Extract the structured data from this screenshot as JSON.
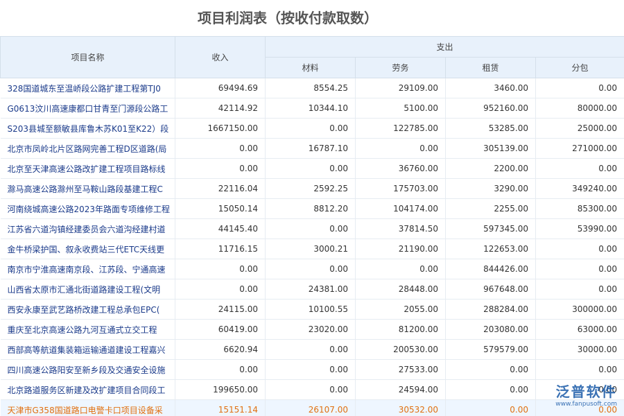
{
  "header": {
    "title": "项目利润表（按收付款取数）"
  },
  "table": {
    "columns": {
      "name": "项目名称",
      "income": "收入",
      "expense": "支出",
      "sub": [
        "材料",
        "劳务",
        "租赁",
        "分包"
      ]
    },
    "rows": [
      [
        "328国道城东至温峤段公路扩建工程第TJ0",
        "69494.69",
        "8554.25",
        "29109.00",
        "3460.00",
        "0.00"
      ],
      [
        "G0613汶川高速康都口甘青至门源段公路工",
        "42114.92",
        "10344.10",
        "5100.00",
        "952160.00",
        "80000.00"
      ],
      [
        "S203县城至额敏县库鲁木苏K01至K22）段",
        "1667150.00",
        "0.00",
        "122785.00",
        "53285.00",
        "25000.00"
      ],
      [
        "北京市凤岭北片区路网完善工程D区道路(局",
        "0.00",
        "16787.10",
        "0.00",
        "305139.00",
        "271000.00"
      ],
      [
        "北京至天津高速公路改扩建工程项目路标线",
        "0.00",
        "0.00",
        "36760.00",
        "2200.00",
        "0.00"
      ],
      [
        "滁马高速公路滁州至马鞍山路段基建工程C",
        "22116.04",
        "2592.25",
        "175703.00",
        "3290.00",
        "349240.00"
      ],
      [
        "河南绕城高速公路2023年路面专项维修工程",
        "15050.14",
        "8812.20",
        "104174.00",
        "2255.00",
        "85300.00"
      ],
      [
        "江苏省六道沟镇经建委员会六道沟经建村道",
        "44145.40",
        "0.00",
        "37814.50",
        "597345.00",
        "53990.00"
      ],
      [
        "金牛桥梁护国、叙永收费站三代ETC天线更",
        "11716.15",
        "3000.21",
        "21190.00",
        "122653.00",
        "0.00"
      ],
      [
        "南京市宁淮高速南京段、江苏段、宁通高速",
        "0.00",
        "0.00",
        "0.00",
        "844426.00",
        "0.00"
      ],
      [
        "山西省太原市汇通北街道路建设工程(文明",
        "0.00",
        "24381.00",
        "28448.00",
        "967648.00",
        "0.00"
      ],
      [
        "西安永康至武艺路桥改建工程总承包EPC(",
        "24115.00",
        "10100.55",
        "2055.00",
        "288284.00",
        "300000.00"
      ],
      [
        "重庆至北京高速公路九河互通式立交工程",
        "60419.00",
        "23020.00",
        "81200.00",
        "203080.00",
        "63000.00"
      ],
      [
        "西部高等航道集装箱运输通道建设工程嘉兴",
        "6620.94",
        "0.00",
        "200530.00",
        "579579.00",
        "30000.00"
      ],
      [
        "四川高速公路阳安至新乡段及交通安全设施",
        "0.00",
        "0.00",
        "27533.00",
        "0.00",
        "0.00"
      ],
      [
        "北京路道服务区新建及改扩建项目合同段工",
        "199650.00",
        "0.00",
        "24594.00",
        "0.00",
        "0.00"
      ],
      [
        "天津市G358国道路口电警卡口项目设备采",
        "15151.14",
        "26107.00",
        "30532.00",
        "0.00",
        "0.00"
      ]
    ]
  },
  "watermark": {
    "brand": "泛普软件",
    "url": "www.fanpusoft.com"
  }
}
